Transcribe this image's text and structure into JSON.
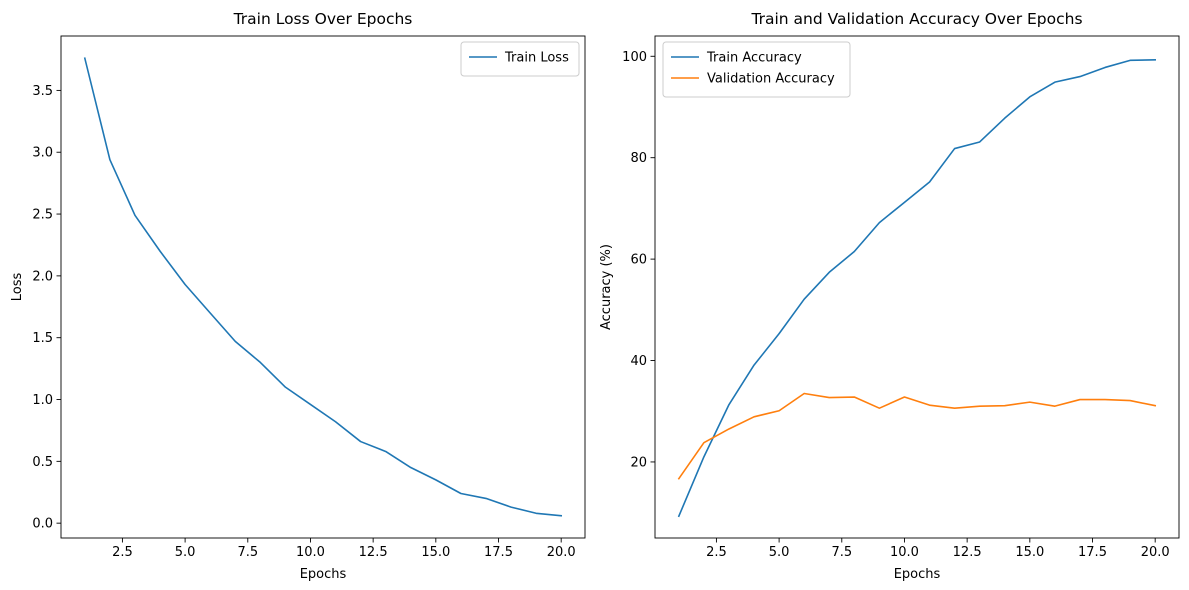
{
  "chart_data": [
    {
      "type": "line",
      "title": "Train Loss Over Epochs",
      "xlabel": "Epochs",
      "ylabel": "Loss",
      "xlim": [
        0.05,
        20.95
      ],
      "ylim": [
        -0.12,
        3.94
      ],
      "xticks": [
        2.5,
        5.0,
        7.5,
        10.0,
        12.5,
        15.0,
        17.5,
        20.0
      ],
      "yticks": [
        0.0,
        0.5,
        1.0,
        1.5,
        2.0,
        2.5,
        3.0,
        3.5
      ],
      "grid": false,
      "legend_position": "top-right",
      "x": [
        1,
        2,
        3,
        4,
        5,
        6,
        7,
        8,
        9,
        10,
        11,
        12,
        13,
        14,
        15,
        16,
        17,
        18,
        19,
        20
      ],
      "series": [
        {
          "name": "Train Loss",
          "color": "#1f77b4",
          "values": [
            3.76,
            2.94,
            2.49,
            2.2,
            1.93,
            1.7,
            1.47,
            1.3,
            1.1,
            0.96,
            0.82,
            0.66,
            0.58,
            0.45,
            0.35,
            0.24,
            0.2,
            0.13,
            0.08,
            0.06
          ]
        }
      ]
    },
    {
      "type": "line",
      "title": "Train and Validation Accuracy Over Epochs",
      "xlabel": "Epochs",
      "ylabel": "Accuracy (%)",
      "xlim": [
        0.05,
        20.95
      ],
      "ylim": [
        5.0,
        104.0
      ],
      "xticks": [
        2.5,
        5.0,
        7.5,
        10.0,
        12.5,
        15.0,
        17.5,
        20.0
      ],
      "yticks": [
        20,
        40,
        60,
        80,
        100
      ],
      "grid": false,
      "legend_position": "top-left",
      "x": [
        1,
        2,
        3,
        4,
        5,
        6,
        7,
        8,
        9,
        10,
        11,
        12,
        13,
        14,
        15,
        16,
        17,
        18,
        19,
        20
      ],
      "series": [
        {
          "name": "Train Accuracy",
          "color": "#1f77b4",
          "values": [
            9.3,
            21.0,
            31.3,
            39.1,
            45.3,
            52.1,
            57.4,
            61.5,
            67.2,
            71.2,
            75.2,
            81.8,
            83.1,
            87.8,
            92.0,
            94.9,
            96.0,
            97.8,
            99.2,
            99.3
          ]
        },
        {
          "name": "Validation Accuracy",
          "color": "#ff7f0e",
          "values": [
            16.7,
            23.8,
            26.5,
            28.9,
            30.1,
            33.5,
            32.7,
            32.8,
            30.6,
            32.8,
            31.2,
            30.6,
            31.0,
            31.1,
            31.8,
            31.0,
            32.3,
            32.3,
            32.1,
            31.1
          ]
        }
      ]
    }
  ]
}
